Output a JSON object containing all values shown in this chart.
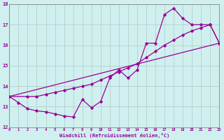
{
  "xlabel": "Windchill (Refroidissement éolien,°C)",
  "bg_color": "#cff0ee",
  "grid_color": "#b0c8c8",
  "line_color": "#990099",
  "xlim": [
    0,
    23
  ],
  "ylim": [
    12,
    18
  ],
  "xticks": [
    0,
    1,
    2,
    3,
    4,
    5,
    6,
    7,
    8,
    9,
    10,
    11,
    12,
    13,
    14,
    15,
    16,
    17,
    18,
    19,
    20,
    21,
    22,
    23
  ],
  "yticks": [
    12,
    13,
    14,
    15,
    16,
    17,
    18
  ],
  "line1_x": [
    0,
    1,
    2,
    3,
    4,
    5,
    6,
    7,
    8,
    9,
    10,
    11,
    12,
    13,
    14,
    15,
    16,
    17,
    18,
    19,
    20,
    21,
    22,
    23
  ],
  "line1_y": [
    13.5,
    13.2,
    12.9,
    12.8,
    12.75,
    12.65,
    12.55,
    12.5,
    13.35,
    12.95,
    13.25,
    14.4,
    14.8,
    14.4,
    14.8,
    16.1,
    16.1,
    17.5,
    17.8,
    17.3,
    17.0,
    17.0,
    17.0,
    16.1
  ],
  "line2_x": [
    0,
    2,
    3,
    4,
    5,
    6,
    7,
    8,
    9,
    10,
    11,
    12,
    13,
    14,
    15,
    16,
    17,
    18,
    19,
    20,
    21,
    22,
    23
  ],
  "line2_y": [
    13.5,
    13.5,
    13.5,
    13.6,
    13.7,
    13.8,
    13.9,
    14.0,
    14.1,
    14.3,
    14.5,
    14.7,
    14.9,
    15.1,
    15.4,
    15.7,
    16.0,
    16.25,
    16.5,
    16.7,
    16.85,
    17.0,
    16.1
  ],
  "line3_x": [
    0,
    23
  ],
  "line3_y": [
    13.5,
    16.1
  ],
  "marker": "D",
  "markersize": 1.8,
  "linewidth": 0.9
}
